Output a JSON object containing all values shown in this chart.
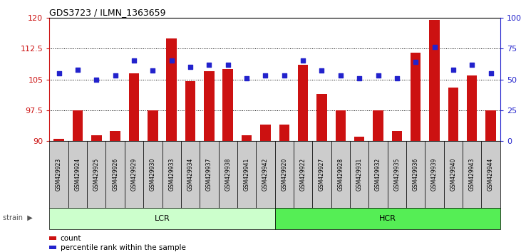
{
  "title": "GDS3723 / ILMN_1363659",
  "samples": [
    "GSM429923",
    "GSM429924",
    "GSM429925",
    "GSM429926",
    "GSM429929",
    "GSM429930",
    "GSM429933",
    "GSM429934",
    "GSM429937",
    "GSM429938",
    "GSM429941",
    "GSM429942",
    "GSM429920",
    "GSM429922",
    "GSM429927",
    "GSM429928",
    "GSM429931",
    "GSM429932",
    "GSM429935",
    "GSM429936",
    "GSM429939",
    "GSM429940",
    "GSM429943",
    "GSM429944"
  ],
  "counts": [
    90.5,
    97.5,
    91.5,
    92.5,
    106.5,
    97.5,
    115.0,
    104.5,
    107.0,
    107.5,
    91.5,
    94.0,
    94.0,
    108.5,
    101.5,
    97.5,
    91.0,
    97.5,
    92.5,
    111.5,
    119.5,
    103.0,
    106.0,
    97.5
  ],
  "percentile_ranks": [
    55,
    58,
    50,
    53,
    65,
    57,
    65,
    60,
    62,
    62,
    51,
    53,
    53,
    65,
    57,
    53,
    51,
    53,
    51,
    64,
    76,
    58,
    62,
    55
  ],
  "lcr_count": 12,
  "hcr_count": 12,
  "ylim_left": [
    90,
    120
  ],
  "ylim_right": [
    0,
    100
  ],
  "yticks_left": [
    90,
    97.5,
    105,
    112.5,
    120
  ],
  "yticks_right": [
    0,
    25,
    50,
    75,
    100
  ],
  "bar_color": "#cc1111",
  "dot_color": "#2222cc",
  "lcr_color": "#ccffcc",
  "hcr_color": "#55ee55",
  "xlabel_color": "#cc1111",
  "dot_color_right": "#2222cc",
  "grid_color": "#000000",
  "bg_color": "#ffffff",
  "tick_label_bg": "#cccccc",
  "legend_red": "#cc1111",
  "legend_blue": "#2222cc"
}
